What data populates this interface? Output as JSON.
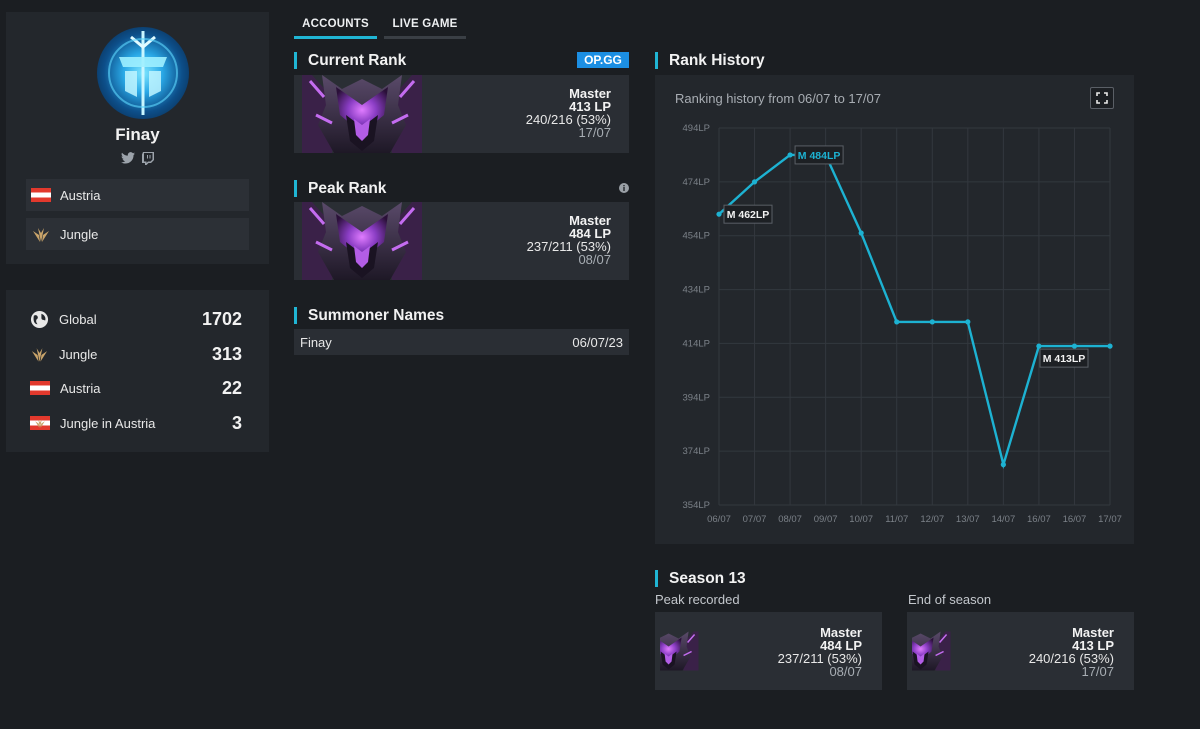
{
  "profile": {
    "name": "Finay",
    "tags": [
      {
        "label": "Austria",
        "icon": "austria-flag-icon"
      },
      {
        "label": "Jungle",
        "icon": "jungle-icon"
      }
    ]
  },
  "rankings": [
    {
      "label": "Global",
      "value": "1702",
      "icon": "globe-icon"
    },
    {
      "label": "Jungle",
      "value": "313",
      "icon": "jungle-icon"
    },
    {
      "label": "Austria",
      "value": "22",
      "icon": "austria-flag-icon"
    },
    {
      "label": "Jungle in Austria",
      "value": "3",
      "icon": "jungle-austria-icon"
    }
  ],
  "tabs": [
    {
      "label": "ACCOUNTS",
      "active": true
    },
    {
      "label": "LIVE GAME",
      "active": false
    }
  ],
  "current_rank": {
    "title": "Current Rank",
    "badge": "OP.GG",
    "tier": "Master",
    "lp": "413 LP",
    "winloss": "240/216 (53%)",
    "date": "17/07"
  },
  "peak_rank": {
    "title": "Peak Rank",
    "tier": "Master",
    "lp": "484 LP",
    "winloss": "237/211 (53%)",
    "date": "08/07"
  },
  "summoner_names": {
    "title": "Summoner Names",
    "rows": [
      {
        "name": "Finay",
        "date": "06/07/23"
      }
    ]
  },
  "rank_history": {
    "title": "Rank History",
    "subtitle": "Ranking history from 06/07 to 17/07"
  },
  "chart_data": {
    "type": "line",
    "x": [
      "06/07",
      "07/07",
      "08/07",
      "09/07",
      "10/07",
      "11/07",
      "12/07",
      "13/07",
      "14/07",
      "16/07",
      "16/07",
      "17/07"
    ],
    "y": [
      462,
      474,
      484,
      484,
      455,
      422,
      422,
      422,
      369,
      413,
      413,
      413
    ],
    "yticks": [
      494,
      474,
      454,
      434,
      414,
      394,
      374,
      354
    ],
    "ytick_labels": [
      "494LP",
      "474LP",
      "454LP",
      "434LP",
      "414LP",
      "394LP",
      "374LP",
      "354LP"
    ],
    "ylim": [
      354,
      494
    ],
    "grid": true,
    "line_color": "#1db2d2",
    "annotations": [
      {
        "index": 0,
        "text": "M 462LP"
      },
      {
        "index": 2,
        "text": "M 484LP"
      },
      {
        "index": 11,
        "text": "M 413LP"
      }
    ]
  },
  "season": {
    "title": "Season 13",
    "peak": {
      "label": "Peak recorded",
      "tier": "Master",
      "lp": "484 LP",
      "winloss": "237/211 (53%)",
      "date": "08/07"
    },
    "end": {
      "label": "End of season",
      "tier": "Master",
      "lp": "413 LP",
      "winloss": "240/216 (53%)",
      "date": "17/07"
    }
  },
  "colors": {
    "accent": "#20b5d4",
    "opgg": "#1c8fe3",
    "master_purple": "#8a3dc4"
  }
}
